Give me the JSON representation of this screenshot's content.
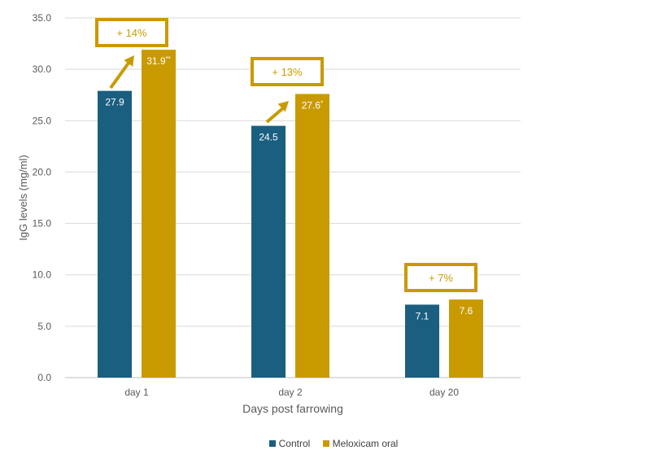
{
  "chart_data": {
    "type": "bar",
    "xlabel": "Days post farrowing",
    "ylabel": "IgG levels (mg/ml)",
    "ylim": [
      0,
      35
    ],
    "yticks": [
      "0.0",
      "5.0",
      "10.0",
      "15.0",
      "20.0",
      "25.0",
      "30.0",
      "35.0"
    ],
    "grid": true,
    "legend_position": "bottom",
    "categories": [
      "day 1",
      "day 2",
      "day 20"
    ],
    "series": [
      {
        "name": "Control",
        "color": "#1a5e80",
        "values": [
          27.9,
          24.5,
          7.1
        ],
        "labels": [
          "27.9",
          "24.5",
          "7.1"
        ]
      },
      {
        "name": "Meloxicam oral",
        "color": "#c99a00",
        "values": [
          31.9,
          27.6,
          7.6
        ],
        "labels": [
          "31.9",
          "27.6",
          "7.6"
        ],
        "label_suffixes": [
          "**",
          "*",
          ""
        ]
      }
    ],
    "annotations": [
      {
        "category": "day 1",
        "text": "+ 14%",
        "arrow": true
      },
      {
        "category": "day 2",
        "text": "+ 13%",
        "arrow": true
      },
      {
        "category": "day 20",
        "text": "+ 7%",
        "arrow": false
      }
    ]
  }
}
